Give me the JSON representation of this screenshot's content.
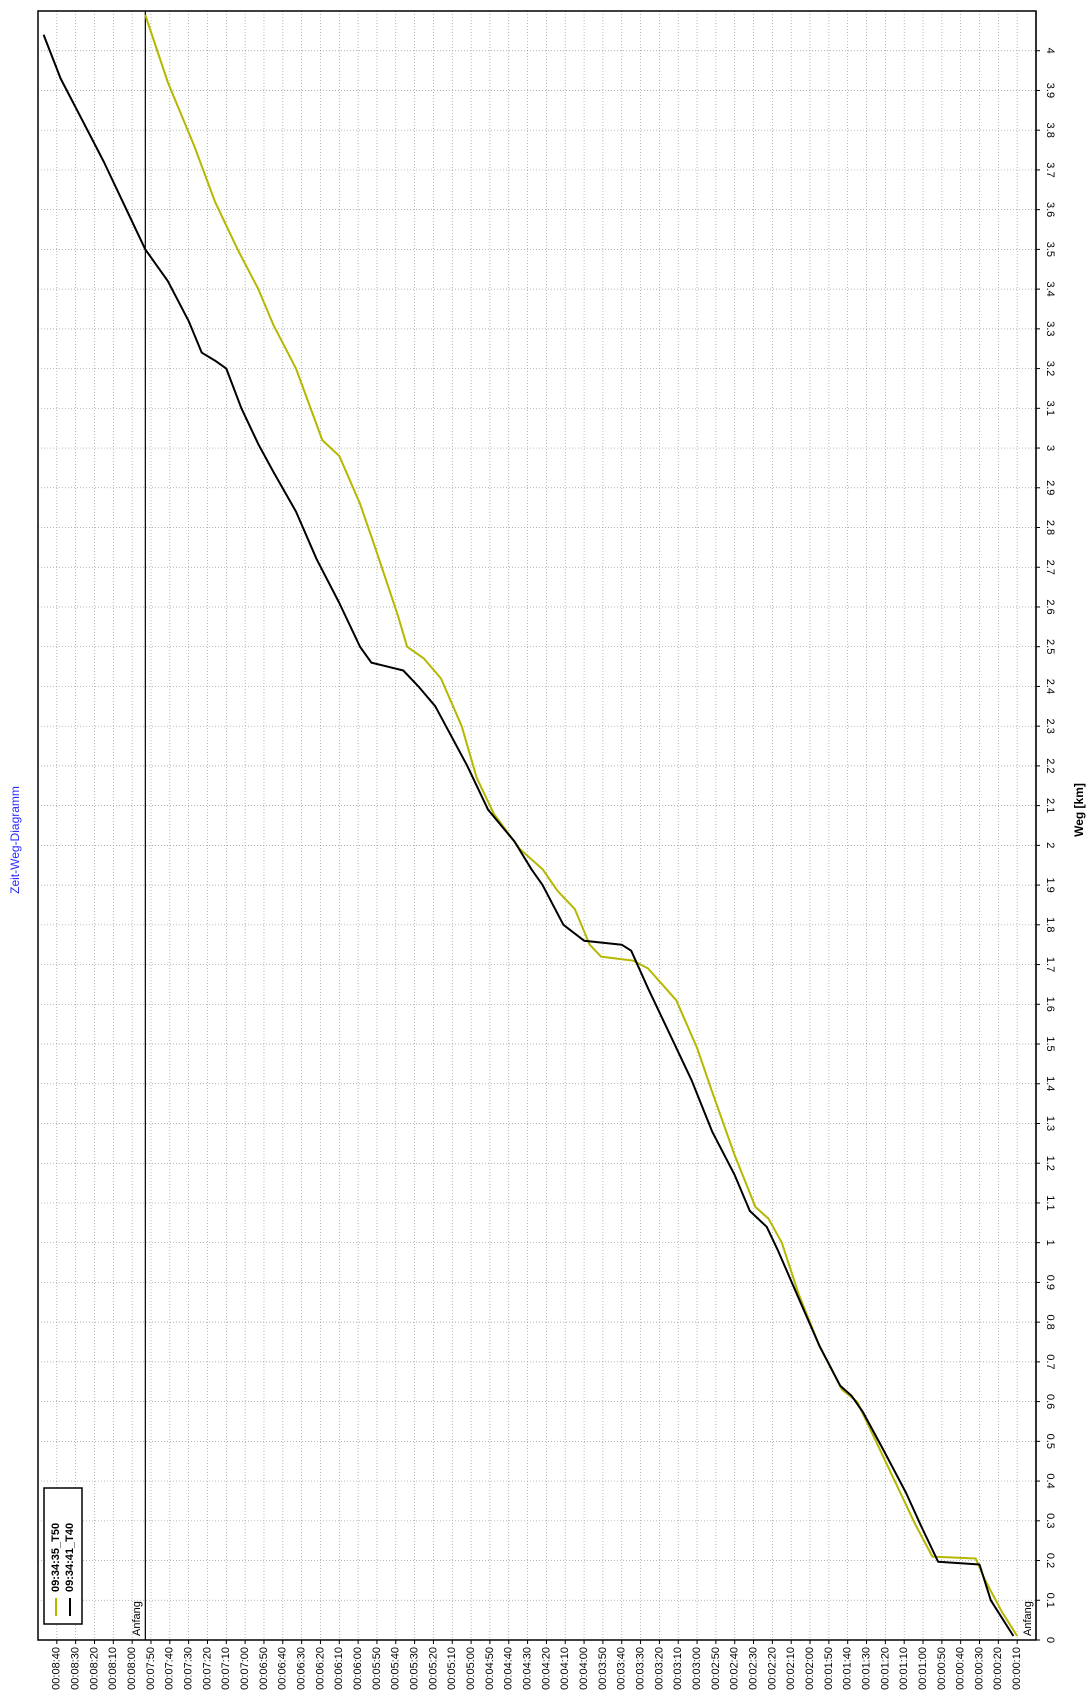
{
  "chart_data": {
    "type": "line",
    "title": "Zeit-Weg-Diagramm",
    "y_label": "Weg [km]",
    "xlim": [
      0,
      530
    ],
    "ylim": [
      0,
      4.1
    ],
    "grid": true,
    "legend": "bottom-left",
    "xticks": [
      {
        "value": 10,
        "label": "00:00:10"
      },
      {
        "value": 20,
        "label": "00:00:20"
      },
      {
        "value": 30,
        "label": "00:00:30"
      },
      {
        "value": 40,
        "label": "00:00:40"
      },
      {
        "value": 50,
        "label": "00:00:50"
      },
      {
        "value": 60,
        "label": "00:01:00"
      },
      {
        "value": 70,
        "label": "00:01:10"
      },
      {
        "value": 80,
        "label": "00:01:20"
      },
      {
        "value": 90,
        "label": "00:01:30"
      },
      {
        "value": 100,
        "label": "00:01:40"
      },
      {
        "value": 110,
        "label": "00:01:50"
      },
      {
        "value": 120,
        "label": "00:02:00"
      },
      {
        "value": 130,
        "label": "00:02:10"
      },
      {
        "value": 140,
        "label": "00:02:20"
      },
      {
        "value": 150,
        "label": "00:02:30"
      },
      {
        "value": 160,
        "label": "00:02:40"
      },
      {
        "value": 170,
        "label": "00:02:50"
      },
      {
        "value": 180,
        "label": "00:03:00"
      },
      {
        "value": 190,
        "label": "00:03:10"
      },
      {
        "value": 200,
        "label": "00:03:20"
      },
      {
        "value": 210,
        "label": "00:03:30"
      },
      {
        "value": 220,
        "label": "00:03:40"
      },
      {
        "value": 230,
        "label": "00:03:50"
      },
      {
        "value": 240,
        "label": "00:04:00"
      },
      {
        "value": 250,
        "label": "00:04:10"
      },
      {
        "value": 260,
        "label": "00:04:20"
      },
      {
        "value": 270,
        "label": "00:04:30"
      },
      {
        "value": 280,
        "label": "00:04:40"
      },
      {
        "value": 290,
        "label": "00:04:50"
      },
      {
        "value": 300,
        "label": "00:05:00"
      },
      {
        "value": 310,
        "label": "00:05:10"
      },
      {
        "value": 320,
        "label": "00:05:20"
      },
      {
        "value": 330,
        "label": "00:05:30"
      },
      {
        "value": 340,
        "label": "00:05:40"
      },
      {
        "value": 350,
        "label": "00:05:50"
      },
      {
        "value": 360,
        "label": "00:06:00"
      },
      {
        "value": 370,
        "label": "00:06:10"
      },
      {
        "value": 380,
        "label": "00:06:20"
      },
      {
        "value": 390,
        "label": "00:06:30"
      },
      {
        "value": 400,
        "label": "00:06:40"
      },
      {
        "value": 410,
        "label": "00:06:50"
      },
      {
        "value": 420,
        "label": "00:07:00"
      },
      {
        "value": 430,
        "label": "00:07:10"
      },
      {
        "value": 440,
        "label": "00:07:20"
      },
      {
        "value": 450,
        "label": "00:07:30"
      },
      {
        "value": 460,
        "label": "00:07:40"
      },
      {
        "value": 470,
        "label": "00:07:50"
      },
      {
        "value": 480,
        "label": "00:08:00"
      },
      {
        "value": 490,
        "label": "00:08:10"
      },
      {
        "value": 500,
        "label": "00:08:20"
      },
      {
        "value": 510,
        "label": "00:08:30"
      },
      {
        "value": 520,
        "label": "00:08:40"
      }
    ],
    "yticks": [
      0,
      0.1,
      0.2,
      0.3,
      0.4,
      0.5,
      0.6,
      0.7,
      0.8,
      0.9,
      1,
      1.1,
      1.2,
      1.3,
      1.4,
      1.5,
      1.6,
      1.7,
      1.8,
      1.9,
      2,
      2.1,
      2.2,
      2.3,
      2.4,
      2.5,
      2.6,
      2.7,
      2.8,
      2.9,
      3,
      3.1,
      3.2,
      3.3,
      3.4,
      3.5,
      3.6,
      3.7,
      3.8,
      3.9,
      4
    ],
    "annotations": [
      {
        "text": "Anfang",
        "x": 473
      },
      {
        "text": "Anfang",
        "x": 0
      }
    ],
    "series": [
      {
        "name": "09:34:35_T50",
        "color": "#b5b800",
        "x": [
          10,
          18,
          27,
          32,
          55,
          64,
          75,
          86,
          95,
          103,
          115,
          126,
          135,
          142,
          149,
          160,
          172,
          180,
          191,
          206,
          214,
          231,
          237,
          245,
          254,
          262,
          274,
          288,
          297,
          305,
          316,
          325,
          334,
          339,
          351,
          359,
          370,
          379,
          393,
          405,
          413,
          424,
          436,
          447,
          461,
          473
        ],
        "values": [
          0.01,
          0.07,
          0.15,
          0.205,
          0.21,
          0.29,
          0.4,
          0.51,
          0.6,
          0.63,
          0.74,
          0.87,
          1.0,
          1.06,
          1.09,
          1.22,
          1.38,
          1.49,
          1.61,
          1.69,
          1.71,
          1.72,
          1.75,
          1.84,
          1.885,
          1.94,
          1.99,
          2.08,
          2.17,
          2.3,
          2.42,
          2.47,
          2.5,
          2.58,
          2.75,
          2.86,
          2.98,
          3.02,
          3.2,
          3.31,
          3.4,
          3.5,
          3.62,
          3.76,
          3.92,
          4.09
        ]
      },
      {
        "name": "09:34:41_T40",
        "color": "#000000",
        "x": [
          12,
          24,
          30,
          52,
          61,
          69,
          81,
          92,
          98,
          104,
          115,
          126,
          137,
          143,
          152,
          160,
          172,
          183,
          194,
          206,
          215,
          220,
          240,
          251,
          262,
          268,
          277,
          291,
          302,
          319,
          328,
          336,
          353,
          359,
          370,
          382,
          393,
          405,
          413,
          422,
          430,
          436,
          443,
          450,
          461,
          473,
          484,
          495,
          507,
          518,
          527
        ],
        "values": [
          0.01,
          0.1,
          0.19,
          0.197,
          0.287,
          0.37,
          0.478,
          0.574,
          0.615,
          0.64,
          0.74,
          0.86,
          0.98,
          1.04,
          1.08,
          1.17,
          1.28,
          1.41,
          1.52,
          1.64,
          1.735,
          1.75,
          1.76,
          1.8,
          1.9,
          1.94,
          2.01,
          2.09,
          2.2,
          2.35,
          2.4,
          2.44,
          2.46,
          2.5,
          2.61,
          2.72,
          2.84,
          2.94,
          3.01,
          3.1,
          3.2,
          3.22,
          3.24,
          3.32,
          3.42,
          3.5,
          3.61,
          3.72,
          3.83,
          3.93,
          4.04
        ]
      }
    ]
  }
}
